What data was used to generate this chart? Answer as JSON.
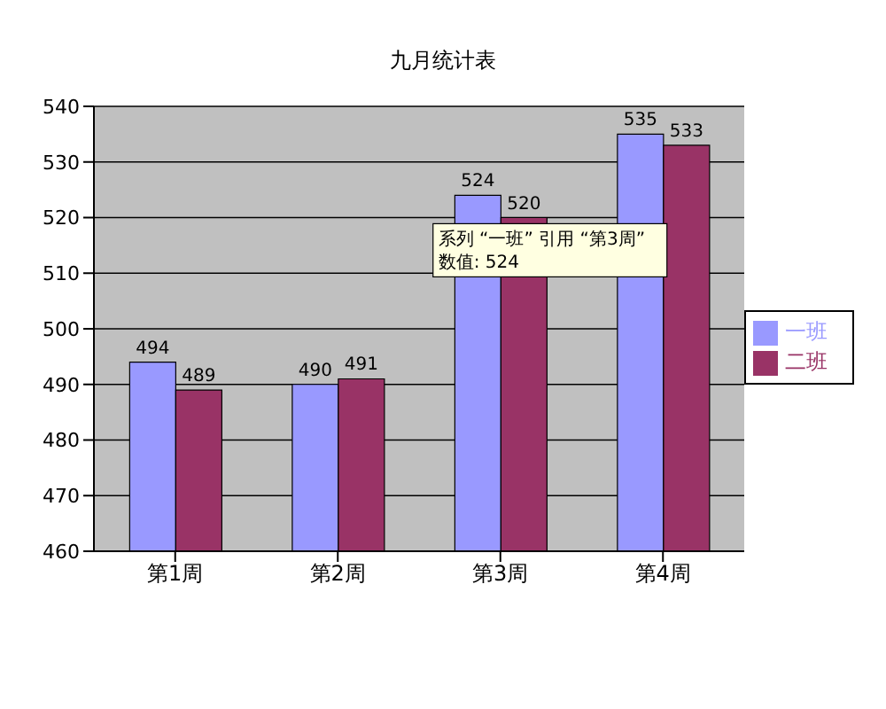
{
  "chart_data": {
    "type": "bar",
    "title": "九月统计表",
    "categories": [
      "第1周",
      "第2周",
      "第3周",
      "第4周"
    ],
    "series": [
      {
        "name": "一班",
        "color": "#9999ff",
        "values": [
          494,
          490,
          524,
          535
        ]
      },
      {
        "name": "二班",
        "color": "#993366",
        "values": [
          489,
          491,
          520,
          533
        ]
      }
    ],
    "ylim": [
      460,
      540
    ],
    "yticks": [
      460,
      470,
      480,
      490,
      500,
      510,
      520,
      530,
      540
    ],
    "grid": "y",
    "legend": "right",
    "data_labels": true,
    "annotations": [
      {
        "text": "系列 “一班” 引用 “第3周”\n数值: 524",
        "x": "第3周",
        "y": 524
      }
    ]
  }
}
